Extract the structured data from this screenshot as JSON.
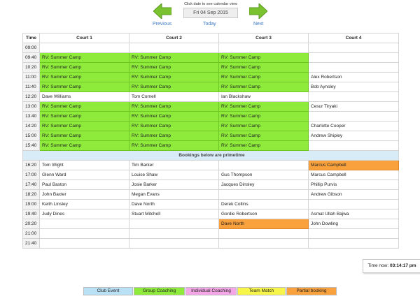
{
  "nav": {
    "previous_label": "Previous",
    "next_label": "Next",
    "hint": "Click date to see calendar view",
    "date": "Fri 04 Sep 2015",
    "today_label": "Today",
    "arrow_color": "#7bc230"
  },
  "table": {
    "headers": [
      "Time",
      "Court 1",
      "Court 2",
      "Court 3",
      "Court 4"
    ],
    "prime_label": "Bookings below are primetime",
    "rows": [
      {
        "time": "09:00",
        "c1": "",
        "c2": "",
        "c3": "",
        "c4": ""
      },
      {
        "time": "09:40",
        "c1": "RV: Summer Camp",
        "c2": "RV: Summer Camp",
        "c3": "RV: Summer Camp",
        "c4": ""
      },
      {
        "time": "10:20",
        "c1": "RV: Summer Camp",
        "c2": "RV: Summer Camp",
        "c3": "RV: Summer Camp",
        "c4": ""
      },
      {
        "time": "11:00",
        "c1": "RV: Summer Camp",
        "c2": "RV: Summer Camp",
        "c3": "RV: Summer Camp",
        "c4": "Alex Robertson"
      },
      {
        "time": "11:40",
        "c1": "RV: Summer Camp",
        "c2": "RV: Summer Camp",
        "c3": "RV: Summer Camp",
        "c4": "Bob Aynsley"
      },
      {
        "time": "12:20",
        "c1": "Dave Williams",
        "c2": "Tom Cornell",
        "c3": "Ian Blackshaw",
        "c4": ""
      },
      {
        "time": "13:00",
        "c1": "RV: Summer Camp",
        "c2": "RV: Summer Camp",
        "c3": "RV: Summer Camp",
        "c4": "Cesur Tiryaki"
      },
      {
        "time": "13:40",
        "c1": "RV: Summer Camp",
        "c2": "RV: Summer Camp",
        "c3": "RV: Summer Camp",
        "c4": ""
      },
      {
        "time": "14:20",
        "c1": "RV: Summer Camp",
        "c2": "RV: Summer Camp",
        "c3": "RV: Summer Camp",
        "c4": "Charlotte Cooper"
      },
      {
        "time": "15:00",
        "c1": "RV: Summer Camp",
        "c2": "RV: Summer Camp",
        "c3": "RV: Summer Camp",
        "c4": "Andrew Shipley"
      },
      {
        "time": "15:40",
        "c1": "RV: Summer Camp",
        "c2": "RV: Summer Camp",
        "c3": "RV: Summer Camp",
        "c4": ""
      },
      {
        "time": "16:20",
        "c1": "Tom Wight",
        "c2": "Tim Barker",
        "c3": "",
        "c4": "Marcus Campbell"
      },
      {
        "time": "17:00",
        "c1": "Glenn Ward",
        "c2": "Louise Shaw",
        "c3": "Gus Thompson",
        "c4": "Marcus Campbell"
      },
      {
        "time": "17:40",
        "c1": "Paul Baston",
        "c2": "Josie Barker",
        "c3": "Jacques Dinsley",
        "c4": "Phillip Purvis"
      },
      {
        "time": "18:20",
        "c1": "John Baxter",
        "c2": "Megan Evans",
        "c3": "",
        "c4": "Andrew Gibson"
      },
      {
        "time": "19:00",
        "c1": "Keith Linsley",
        "c2": "Dave North",
        "c3": "Derek Collins",
        "c4": ""
      },
      {
        "time": "19:40",
        "c1": "Judy Dines",
        "c2": "Stuart Mitchell",
        "c3": "Gordie Robertson",
        "c4": "Asmat Ullah Bajwa"
      },
      {
        "time": "20:20",
        "c1": "",
        "c2": "",
        "c3": "Dave North",
        "c4": "John Dowling"
      },
      {
        "time": "21:00",
        "c1": "",
        "c2": "",
        "c3": "",
        "c4": ""
      },
      {
        "time": "21:40",
        "c1": "",
        "c2": "",
        "c3": "",
        "c4": ""
      }
    ]
  },
  "time_now": {
    "label": "Time now:",
    "value": "03:14:17 pm"
  },
  "legend": [
    {
      "label": "Club Event",
      "color": "#b9e1f5"
    },
    {
      "label": "Group Coaching",
      "color": "#8eea3b"
    },
    {
      "label": "Individual Coaching",
      "color": "#f4a6e6"
    },
    {
      "label": "Team Match",
      "color": "#f7f54a"
    },
    {
      "label": "Partial booking",
      "color": "#f9a23d"
    }
  ],
  "colors": {
    "group_coaching": "#8eea3b",
    "partial_booking": "#f9a23d",
    "primetime_band": "#d8ecf8",
    "link": "#3a78c2"
  }
}
